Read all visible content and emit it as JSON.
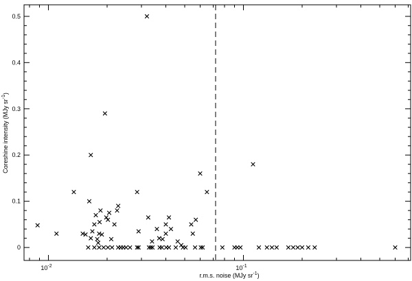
{
  "chart_data": {
    "type": "scatter",
    "title": "",
    "xlabel": {
      "text": "r.m.s. noise (MJy sr",
      "sup": "-1",
      "close": ")"
    },
    "ylabel": {
      "text": "Coreshine intensity (MJy sr",
      "sup": "-1",
      "close": ")"
    },
    "xscale": "log",
    "xlim": [
      0.0075,
      0.72
    ],
    "ylim": [
      -0.028,
      0.525
    ],
    "x_tick_labels": [
      {
        "value": 0.01,
        "base": "10",
        "exp": "-2"
      },
      {
        "value": 0.1,
        "base": "10",
        "exp": "-1"
      }
    ],
    "y_ticks": [
      0,
      0.1,
      0.2,
      0.3,
      0.4,
      0.5
    ],
    "y_tick_labels": [
      "0",
      "0.1",
      "0.2",
      "0.3",
      "0.4",
      "0.5"
    ],
    "marker": "x",
    "marker_color": "#000000",
    "grid": false,
    "reference_line": {
      "orientation": "vertical",
      "x": 0.072,
      "style": "dashed"
    },
    "series": [
      {
        "points": [
          [
            0.0088,
            0.048
          ],
          [
            0.011,
            0.03
          ],
          [
            0.0135,
            0.12
          ],
          [
            0.015,
            0.03
          ],
          [
            0.0155,
            0.028
          ],
          [
            0.0162,
            0.1
          ],
          [
            0.0165,
            0.2
          ],
          [
            0.0165,
            0.02
          ],
          [
            0.0168,
            0.035
          ],
          [
            0.0172,
            0.05
          ],
          [
            0.0175,
            0.07
          ],
          [
            0.0178,
            0.018
          ],
          [
            0.018,
            0.01
          ],
          [
            0.0182,
            0.03
          ],
          [
            0.0183,
            0.055
          ],
          [
            0.0185,
            0.08
          ],
          [
            0.0188,
            0.028
          ],
          [
            0.0195,
            0.29
          ],
          [
            0.0198,
            0.065
          ],
          [
            0.0202,
            0.06
          ],
          [
            0.0205,
            0.075
          ],
          [
            0.021,
            0.018
          ],
          [
            0.0218,
            0.05
          ],
          [
            0.0225,
            0.08
          ],
          [
            0.0228,
            0.09
          ],
          [
            0.0285,
            0.12
          ],
          [
            0.029,
            0.035
          ],
          [
            0.032,
            0.5
          ],
          [
            0.0325,
            0.065
          ],
          [
            0.034,
            0.013
          ],
          [
            0.036,
            0.04
          ],
          [
            0.037,
            0.02
          ],
          [
            0.0385,
            0.018
          ],
          [
            0.04,
            0.05
          ],
          [
            0.04,
            0.03
          ],
          [
            0.0415,
            0.065
          ],
          [
            0.0425,
            0.04
          ],
          [
            0.046,
            0.013
          ],
          [
            0.048,
            0.005
          ],
          [
            0.054,
            0.05
          ],
          [
            0.055,
            0.03
          ],
          [
            0.057,
            0.06
          ],
          [
            0.06,
            0.16
          ],
          [
            0.065,
            0.12
          ],
          [
            0.112,
            0.18
          ],
          [
            0.016,
            0
          ],
          [
            0.0172,
            0
          ],
          [
            0.0182,
            0
          ],
          [
            0.0192,
            0
          ],
          [
            0.0202,
            0
          ],
          [
            0.0212,
            0
          ],
          [
            0.0228,
            0
          ],
          [
            0.0235,
            0
          ],
          [
            0.0242,
            0
          ],
          [
            0.025,
            0
          ],
          [
            0.0262,
            0
          ],
          [
            0.0285,
            0
          ],
          [
            0.029,
            0
          ],
          [
            0.0328,
            0
          ],
          [
            0.0335,
            0
          ],
          [
            0.0342,
            0
          ],
          [
            0.0372,
            0
          ],
          [
            0.0382,
            0
          ],
          [
            0.0402,
            0
          ],
          [
            0.0415,
            0
          ],
          [
            0.045,
            0
          ],
          [
            0.049,
            0
          ],
          [
            0.0505,
            0
          ],
          [
            0.0565,
            0
          ],
          [
            0.0605,
            0
          ],
          [
            0.0618,
            0
          ],
          [
            0.078,
            0
          ],
          [
            0.09,
            0
          ],
          [
            0.093,
            0
          ],
          [
            0.0965,
            0
          ],
          [
            0.12,
            0
          ],
          [
            0.132,
            0
          ],
          [
            0.14,
            0
          ],
          [
            0.148,
            0
          ],
          [
            0.17,
            0
          ],
          [
            0.18,
            0
          ],
          [
            0.19,
            0
          ],
          [
            0.2,
            0
          ],
          [
            0.215,
            0
          ],
          [
            0.232,
            0
          ],
          [
            0.6,
            0
          ]
        ]
      }
    ]
  }
}
